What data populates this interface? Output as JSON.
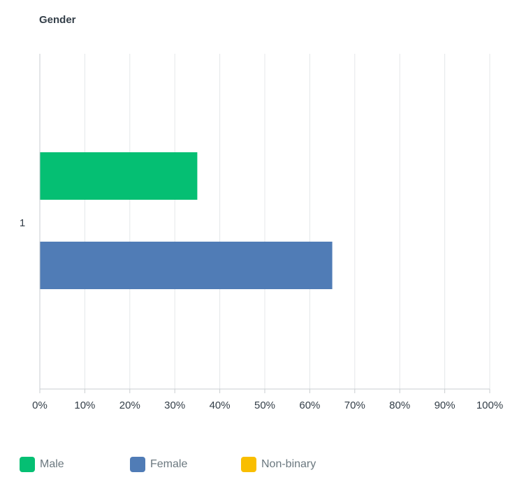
{
  "chart_data": {
    "type": "bar",
    "orientation": "horizontal",
    "title": "Gender",
    "categories": [
      "1"
    ],
    "series": [
      {
        "name": "Male",
        "values": [
          35
        ],
        "color": "#05bf73"
      },
      {
        "name": "Female",
        "values": [
          65
        ],
        "color": "#507cb6"
      },
      {
        "name": "Non-binary",
        "values": [
          0
        ],
        "color": "#f9be00"
      }
    ],
    "xlim": [
      0,
      100
    ],
    "x_ticks": [
      "0%",
      "10%",
      "20%",
      "30%",
      "40%",
      "50%",
      "60%",
      "70%",
      "80%",
      "90%",
      "100%"
    ],
    "grid": true,
    "legend_position": "bottom"
  }
}
